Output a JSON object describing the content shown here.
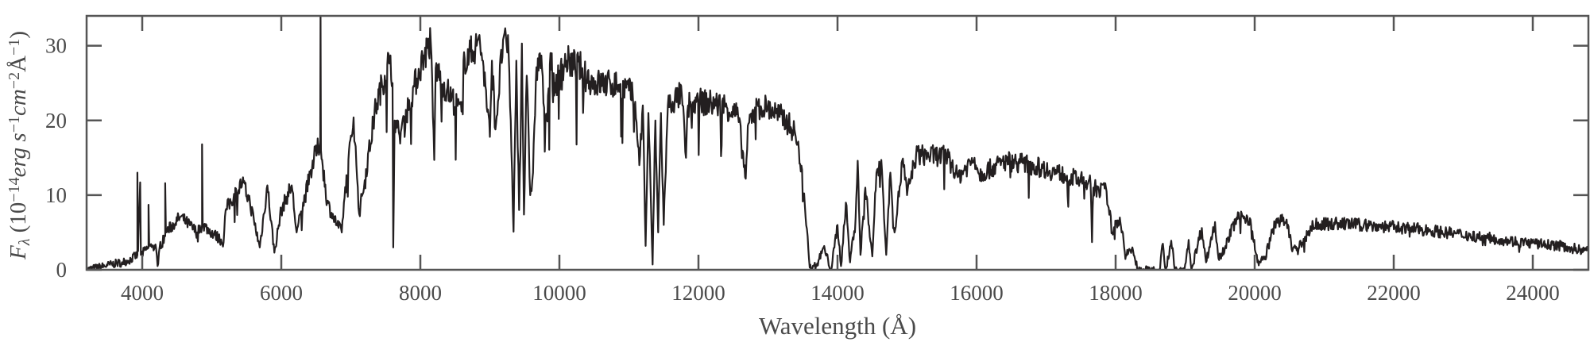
{
  "chart_data": {
    "type": "line",
    "title": "",
    "xlabel": "Wavelength (Å)",
    "ylabel_parts": [
      {
        "text": "F",
        "style": "italic",
        "shift": "none"
      },
      {
        "text": "λ",
        "style": "italic",
        "shift": "sub"
      },
      {
        "text": " (10",
        "style": "normal",
        "shift": "none"
      },
      {
        "text": "−14",
        "style": "normal",
        "shift": "super"
      },
      {
        "text": "erg s",
        "style": "italic",
        "shift": "none"
      },
      {
        "text": "−1",
        "style": "normal",
        "shift": "super"
      },
      {
        "text": "cm",
        "style": "italic",
        "shift": "none"
      },
      {
        "text": "−2",
        "style": "normal",
        "shift": "super"
      },
      {
        "text": "Å",
        "style": "normal",
        "shift": "none"
      },
      {
        "text": "−1",
        "style": "normal",
        "shift": "super"
      },
      {
        "text": ")",
        "style": "normal",
        "shift": "none"
      }
    ],
    "xlim": [
      3200,
      24800
    ],
    "ylim": [
      0,
      34
    ],
    "xticks": [
      "4000",
      "6000",
      "8000",
      "10000",
      "12000",
      "14000",
      "16000",
      "18000",
      "20000",
      "22000",
      "24000"
    ],
    "yticks": [
      "0",
      "10",
      "20",
      "30"
    ],
    "grid": false,
    "line_color": "#231f20",
    "axis_color": "#555555",
    "series": [
      {
        "points": [
          [
            3200,
            0
          ],
          [
            3500,
            0.6
          ],
          [
            3800,
            1.2
          ],
          [
            3930,
            2
          ],
          [
            3930,
            13
          ],
          [
            3940,
            2.5
          ],
          [
            3970,
            11.7
          ],
          [
            3980,
            2
          ],
          [
            4090,
            3
          ],
          [
            4090,
            8.7
          ],
          [
            4100,
            3.2
          ],
          [
            4200,
            2.8
          ],
          [
            4220,
            0.5
          ],
          [
            4250,
            3
          ],
          [
            4330,
            4.5
          ],
          [
            4330,
            11.6
          ],
          [
            4340,
            5
          ],
          [
            4550,
            7.1
          ],
          [
            4790,
            5
          ],
          [
            4860,
            6
          ],
          [
            4860,
            16.8
          ],
          [
            4870,
            6
          ],
          [
            5170,
            3.7
          ],
          [
            5200,
            8
          ],
          [
            5440,
            11.7
          ],
          [
            5550,
            9
          ],
          [
            5690,
            3
          ],
          [
            5800,
            11.3
          ],
          [
            5900,
            2.3
          ],
          [
            6000,
            8
          ],
          [
            6150,
            11.3
          ],
          [
            6220,
            5
          ],
          [
            6470,
            14.9
          ],
          [
            6560,
            17
          ],
          [
            6565,
            34
          ],
          [
            6570,
            16
          ],
          [
            6660,
            9
          ],
          [
            6750,
            7
          ],
          [
            6870,
            5
          ],
          [
            6900,
            9
          ],
          [
            7040,
            20.4
          ],
          [
            7080,
            14
          ],
          [
            7120,
            7.5
          ],
          [
            7200,
            12
          ],
          [
            7360,
            21.9
          ],
          [
            7570,
            28.7
          ],
          [
            7600,
            25
          ],
          [
            7610,
            3
          ],
          [
            7630,
            20
          ],
          [
            7660,
            19
          ],
          [
            7700,
            18
          ],
          [
            8050,
            28.7
          ],
          [
            8150,
            30.5
          ],
          [
            8200,
            14.7
          ],
          [
            8220,
            27
          ],
          [
            8380,
            24
          ],
          [
            8610,
            20.8
          ],
          [
            8620,
            28
          ],
          [
            8810,
            30
          ],
          [
            8840,
            31.2
          ],
          [
            8900,
            28
          ],
          [
            9000,
            17.8
          ],
          [
            9030,
            28
          ],
          [
            9080,
            18.8
          ],
          [
            9190,
            30.8
          ],
          [
            9270,
            29
          ],
          [
            9300,
            20
          ],
          [
            9340,
            5.1
          ],
          [
            9380,
            28
          ],
          [
            9420,
            8
          ],
          [
            9460,
            30.3
          ],
          [
            9490,
            7.4
          ],
          [
            9530,
            26
          ],
          [
            9580,
            10
          ],
          [
            9620,
            13
          ],
          [
            9660,
            25
          ],
          [
            9720,
            29
          ],
          [
            9800,
            20
          ],
          [
            9890,
            29
          ],
          [
            9900,
            24
          ],
          [
            10100,
            28
          ],
          [
            10330,
            27
          ],
          [
            10340,
            21
          ],
          [
            10360,
            26
          ],
          [
            10500,
            25
          ],
          [
            10860,
            24.8
          ],
          [
            11000,
            24
          ],
          [
            11090,
            22.5
          ],
          [
            11150,
            14
          ],
          [
            11200,
            22
          ],
          [
            11240,
            3.2
          ],
          [
            11280,
            21
          ],
          [
            11340,
            0.7
          ],
          [
            11380,
            20
          ],
          [
            11420,
            5
          ],
          [
            11460,
            21
          ],
          [
            11500,
            6
          ],
          [
            11560,
            22
          ],
          [
            11630,
            22.5
          ],
          [
            11760,
            23.5
          ],
          [
            11820,
            15
          ],
          [
            11850,
            22
          ],
          [
            12040,
            22.5
          ],
          [
            12380,
            22
          ],
          [
            12570,
            20.6
          ],
          [
            12680,
            12.2
          ],
          [
            12720,
            19.6
          ],
          [
            12860,
            21.9
          ],
          [
            13000,
            21.7
          ],
          [
            13260,
            20
          ],
          [
            13390,
            18.3
          ],
          [
            13490,
            13.4
          ],
          [
            13570,
            4.5
          ],
          [
            13600,
            0.3
          ],
          [
            13700,
            0.5
          ],
          [
            13800,
            3
          ],
          [
            13910,
            0
          ],
          [
            14000,
            6
          ],
          [
            14050,
            0.5
          ],
          [
            14120,
            9
          ],
          [
            14180,
            1
          ],
          [
            14260,
            7
          ],
          [
            14290,
            14.6
          ],
          [
            14330,
            2
          ],
          [
            14400,
            11
          ],
          [
            14500,
            1.8
          ],
          [
            14560,
            13
          ],
          [
            14630,
            14.7
          ],
          [
            14700,
            2
          ],
          [
            14760,
            13
          ],
          [
            14820,
            5
          ],
          [
            14940,
            14.9
          ],
          [
            15000,
            10
          ],
          [
            15130,
            15.4
          ],
          [
            15580,
            15.2
          ],
          [
            15730,
            12.4
          ],
          [
            15970,
            15
          ],
          [
            16040,
            12.8
          ],
          [
            16430,
            14.6
          ],
          [
            16660,
            14.3
          ],
          [
            16950,
            13.6
          ],
          [
            17300,
            12.6
          ],
          [
            17640,
            11.5
          ],
          [
            17660,
            3.7
          ],
          [
            17680,
            11
          ],
          [
            17870,
            10.5
          ],
          [
            17950,
            5
          ],
          [
            18060,
            7
          ],
          [
            18150,
            2
          ],
          [
            18250,
            2.6
          ],
          [
            18320,
            0
          ],
          [
            18630,
            0
          ],
          [
            18680,
            3.5
          ],
          [
            18720,
            0
          ],
          [
            18800,
            3.9
          ],
          [
            18850,
            0
          ],
          [
            18990,
            0
          ],
          [
            19050,
            4
          ],
          [
            19090,
            0
          ],
          [
            19240,
            5.6
          ],
          [
            19300,
            1
          ],
          [
            19430,
            6.4
          ],
          [
            19480,
            1.5
          ],
          [
            19580,
            3.2
          ],
          [
            19740,
            7
          ],
          [
            19850,
            7.1
          ],
          [
            19940,
            6.7
          ],
          [
            20040,
            1
          ],
          [
            20140,
            1.4
          ],
          [
            20310,
            6.7
          ],
          [
            20450,
            6.4
          ],
          [
            20550,
            2.8
          ],
          [
            20640,
            3
          ],
          [
            20840,
            6
          ],
          [
            21180,
            6.2
          ],
          [
            21570,
            6
          ],
          [
            22020,
            5.7
          ],
          [
            22510,
            5.3
          ],
          [
            22740,
            5
          ],
          [
            23090,
            4.6
          ],
          [
            23660,
            3.9
          ],
          [
            24030,
            3.5
          ],
          [
            24410,
            3.2
          ],
          [
            24800,
            2.5
          ]
        ]
      }
    ]
  }
}
